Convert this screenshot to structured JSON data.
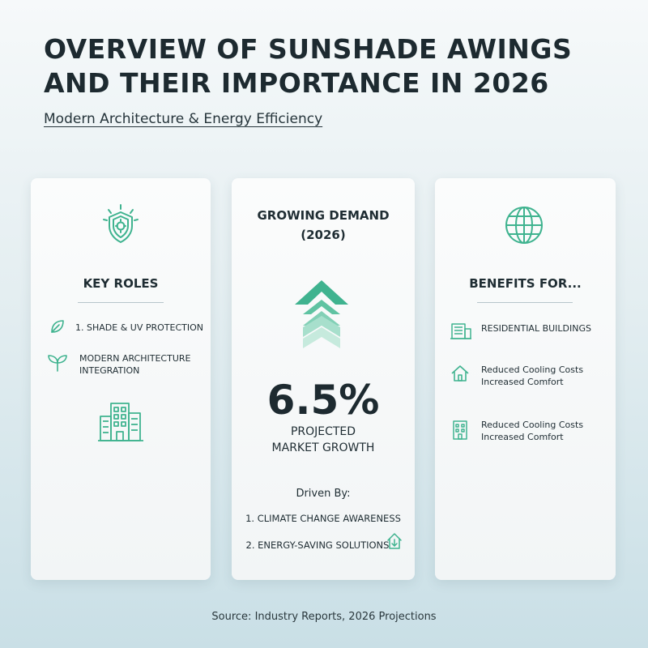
{
  "header": {
    "title_line1": "OVERVIEW OF SUNSHADE AWINGS",
    "title_line2": "AND THEIR IMPORTANCE IN 2026",
    "subtitle": "Modern Architecture & Energy Efficiency"
  },
  "colors": {
    "accent": "#3fb38f",
    "accent_light": "#9fd9c5",
    "text": "#1f2d33"
  },
  "key_roles": {
    "icon": "shield-sun-icon",
    "title": "KEY ROLES",
    "items": [
      {
        "icon": "leaf-icon",
        "label": "1. SHADE & UV PROTECTION"
      },
      {
        "icon": "sprout-icon",
        "label_line1": "MODERN ARCHITECTURE",
        "label_line2": "INTEGRATION"
      }
    ],
    "footer_icon": "office-building-icon"
  },
  "demand": {
    "title_line1": "GROWING DEMAND",
    "title_line2": "(2026)",
    "icon": "growth-chevron-icon",
    "value": "6.5%",
    "label_line1": "PROJECTED",
    "label_line2": "MARKET GROWTH",
    "driven_by": "Driven By:",
    "drivers": [
      {
        "label": "1. CLIMATE CHANGE AWARENESS"
      },
      {
        "label": "2. ENERGY-SAVING SOLUTIONS",
        "icon": "energy-house-icon"
      }
    ]
  },
  "benefits": {
    "icon": "globe-icon",
    "title": "BENEFITS FOR...",
    "items": [
      {
        "icon": "building-icon",
        "label_line1": "RESIDENTIAL BUILDINGS"
      },
      {
        "icon": "house-icon",
        "label_line1": "Reduced Cooling Costs",
        "label_line2": "Increased Comfort"
      },
      {
        "icon": "apartment-icon",
        "label_line1": "Reduced Cooling Costs",
        "label_line2": "Increased Comfort"
      }
    ]
  },
  "footer": {
    "source": "Source: Industry Reports, 2026 Projections"
  }
}
